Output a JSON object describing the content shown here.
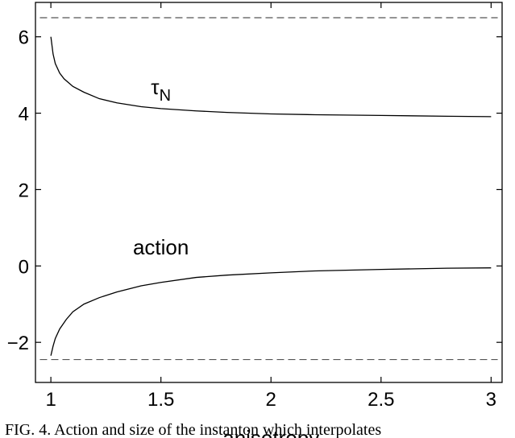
{
  "chart_data": {
    "type": "line",
    "xlabel": "anisotropy",
    "ylabel": "",
    "xlim": [
      0.93,
      3.05
    ],
    "ylim": [
      -3.05,
      6.9
    ],
    "xticks": [
      1,
      1.5,
      2,
      2.5,
      3
    ],
    "xtick_labels": [
      "1",
      "1.5",
      "2",
      "2.5",
      "3"
    ],
    "yticks": [
      -2,
      0,
      2,
      4,
      6
    ],
    "ytick_labels": [
      "−2",
      "0",
      "2",
      "4",
      "6"
    ],
    "grid": false,
    "series": [
      {
        "name": "τ",
        "name_subscript": "N",
        "style": "solid",
        "x": [
          1.0,
          1.01,
          1.02,
          1.04,
          1.06,
          1.1,
          1.15,
          1.22,
          1.3,
          1.41,
          1.5,
          1.66,
          1.8,
          2.0,
          2.2,
          2.5,
          2.8,
          3.0
        ],
        "y": [
          6.0,
          5.55,
          5.3,
          5.05,
          4.9,
          4.7,
          4.55,
          4.38,
          4.27,
          4.17,
          4.12,
          4.06,
          4.02,
          3.98,
          3.96,
          3.94,
          3.92,
          3.91
        ]
      },
      {
        "name": "action",
        "style": "solid",
        "x": [
          1.0,
          1.01,
          1.02,
          1.04,
          1.07,
          1.1,
          1.15,
          1.22,
          1.3,
          1.41,
          1.5,
          1.66,
          1.8,
          2.0,
          2.2,
          2.5,
          2.8,
          3.0
        ],
        "y": [
          -2.35,
          -2.1,
          -1.9,
          -1.65,
          -1.4,
          -1.2,
          -1.0,
          -0.83,
          -0.68,
          -0.52,
          -0.43,
          -0.3,
          -0.24,
          -0.18,
          -0.13,
          -0.09,
          -0.06,
          -0.05
        ]
      },
      {
        "name": "",
        "style": "dashed",
        "x": [
          0.95,
          3.03
        ],
        "y": [
          6.5,
          6.5
        ]
      },
      {
        "name": "",
        "style": "dashed",
        "x": [
          0.95,
          3.03
        ],
        "y": [
          -2.45,
          -2.45
        ]
      }
    ],
    "annotations": [
      {
        "text": "τ",
        "subscript": "N",
        "x": 1.5,
        "y": 4.5
      },
      {
        "text": "action",
        "x": 1.5,
        "y": 0.3
      }
    ],
    "caption": "FIG. 4. Action and size of the instanton which interpolates"
  }
}
